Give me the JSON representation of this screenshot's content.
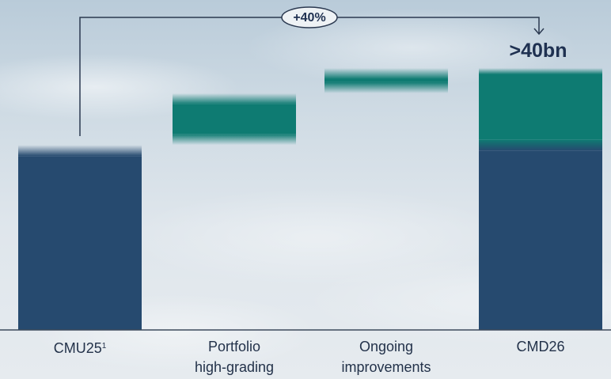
{
  "chart_data": {
    "type": "waterfall",
    "categories": [
      "CMU25",
      "Portfolio high-grading",
      "Ongoing improvements",
      "CMD26"
    ],
    "category_labels": [
      {
        "lines": [
          "CMU25"
        ],
        "footnote": "1"
      },
      {
        "lines": [
          "Portfolio",
          "high-grading"
        ]
      },
      {
        "lines": [
          "Ongoing",
          "improvements"
        ]
      },
      {
        "lines": [
          "CMD26"
        ]
      }
    ],
    "steps": [
      {
        "label": "CMU25",
        "kind": "base",
        "from": 0,
        "to": 28.6
      },
      {
        "label": "Portfolio high-grading",
        "kind": "increase",
        "from": 28.6,
        "to": 36.6
      },
      {
        "label": "Ongoing improvements",
        "kind": "increase",
        "from": 36.6,
        "to": 40.5
      },
      {
        "label": "CMD26",
        "kind": "total",
        "base": 28.6,
        "increase": 11.9,
        "to": 40.5
      }
    ],
    "annotations": {
      "total_label": ">40bn",
      "growth_label": "+40%"
    },
    "ylim": [
      0,
      40.5
    ],
    "colors": {
      "base": "#264a6f",
      "increase": "#0e7b72",
      "axis": "#3d4a5c",
      "text": "#23324a"
    }
  }
}
